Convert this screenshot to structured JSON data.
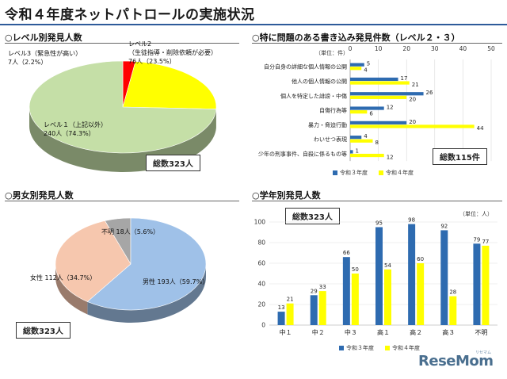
{
  "page_title": "令和４年度ネットパトロールの実施状況",
  "colors": {
    "blue": "#2e6bb0",
    "yellow": "#ffff00",
    "red": "#ff0000",
    "green": "#c5dfa7",
    "pink": "#f6c7ae",
    "lightblue": "#9fc1e8",
    "gray": "#a6a6a6"
  },
  "chart_data": [
    {
      "type": "pie",
      "title": "○レベル別発見人数",
      "labels": [
        "レベル３（緊急性が高い）",
        "レベル２（生徒指導・削除依頼が必要）",
        "レベル１（上記以外）"
      ],
      "values": [
        7,
        76,
        240
      ],
      "percent_labels": [
        "7人（2.2%）",
        "76人（23.5%）",
        "240人（74.3%）"
      ],
      "label_lines": [
        [
          "レベル3（緊急性が高い）",
          "7人（2.2%）"
        ],
        [
          "レベル2",
          "（生徒指導・削除依頼が必要）",
          "76人（23.5%）"
        ],
        [
          "レベル１（上記以外）",
          "240人（74.3%）"
        ]
      ],
      "total_label": "総数323人"
    },
    {
      "type": "bar",
      "orientation": "horizontal",
      "title": "○特に問題のある書き込み発見件数（レベル２・３）",
      "unit_label": "（単位：件）",
      "categories": [
        "自分自身の詳細な個人情報の公開",
        "他人の個人情報の公開",
        "個人を特定した誹謗・中傷",
        "自傷行為等",
        "暴力・脅迫行動",
        "わいせつ表現",
        "少年の刑事事件、自殺に係るもの等"
      ],
      "series": [
        {
          "name": "令和３年度",
          "values": [
            5,
            17,
            26,
            12,
            20,
            4,
            1
          ]
        },
        {
          "name": "令和４年度",
          "values": [
            4,
            21,
            20,
            6,
            44,
            8,
            12
          ]
        }
      ],
      "xlim": [
        0,
        50
      ],
      "xticks": [
        0,
        10,
        20,
        30,
        40,
        50
      ],
      "total_label": "総数115件"
    },
    {
      "type": "pie",
      "title": "○男女別発見人数",
      "labels": [
        "男性",
        "女性",
        "不明"
      ],
      "values": [
        193,
        112,
        18
      ],
      "slice_labels": [
        "男性 193人（59.7%）",
        "女性 112人（34.7%）",
        "不明 18人（5.6%）"
      ],
      "total_label": "総数323人"
    },
    {
      "type": "bar",
      "title": "○学年別発見人数",
      "unit_label": "（単位：人）",
      "categories": [
        "中１",
        "中２",
        "中３",
        "高１",
        "高２",
        "高３",
        "不明"
      ],
      "series": [
        {
          "name": "令和３年度",
          "values": [
            13,
            29,
            66,
            95,
            98,
            92,
            79
          ]
        },
        {
          "name": "令和４年度",
          "values": [
            21,
            33,
            50,
            54,
            60,
            28,
            77
          ]
        }
      ],
      "ylim": [
        0,
        100
      ],
      "yticks": [
        0,
        20,
        40,
        60,
        80,
        100
      ],
      "total_label": "総数323人"
    }
  ],
  "watermark": {
    "text": "ReseMom",
    "sub": "リセマム"
  }
}
